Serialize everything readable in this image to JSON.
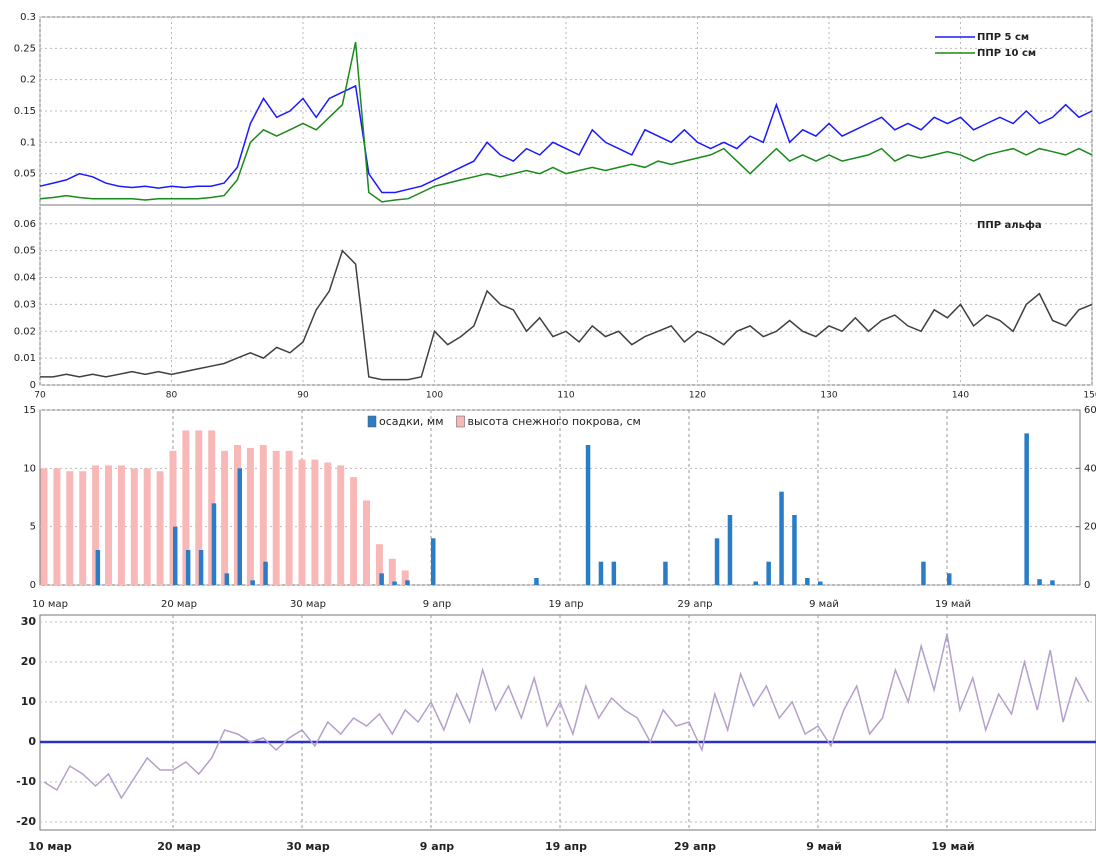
{
  "chart_data": [
    {
      "type": "line",
      "xlim": [
        70,
        150
      ],
      "xticks": [
        70,
        80,
        90,
        100,
        110,
        120,
        130,
        140,
        150
      ],
      "ylim": [
        0,
        0.3
      ],
      "yticks": [
        0.05,
        0.1,
        0.15,
        0.2,
        0.25,
        0.3
      ],
      "grid": true,
      "legend": "top-right",
      "x": [
        70,
        71,
        72,
        73,
        74,
        75,
        76,
        77,
        78,
        79,
        80,
        81,
        82,
        83,
        84,
        85,
        86,
        87,
        88,
        89,
        90,
        91,
        92,
        93,
        94,
        95,
        96,
        97,
        98,
        99,
        100,
        101,
        102,
        103,
        104,
        105,
        106,
        107,
        108,
        109,
        110,
        111,
        112,
        113,
        114,
        115,
        116,
        117,
        118,
        119,
        120,
        121,
        122,
        123,
        124,
        125,
        126,
        127,
        128,
        129,
        130,
        131,
        132,
        133,
        134,
        135,
        136,
        137,
        138,
        139,
        140,
        141,
        142,
        143,
        144,
        145,
        146,
        147,
        148,
        149,
        150
      ],
      "series": [
        {
          "name": "ППР 5 см",
          "color": "#1a1aff",
          "values": [
            0.03,
            0.035,
            0.04,
            0.05,
            0.045,
            0.035,
            0.03,
            0.028,
            0.03,
            0.027,
            0.03,
            0.028,
            0.03,
            0.03,
            0.035,
            0.06,
            0.13,
            0.17,
            0.14,
            0.15,
            0.17,
            0.14,
            0.17,
            0.18,
            0.19,
            0.05,
            0.02,
            0.02,
            0.025,
            0.03,
            0.04,
            0.05,
            0.06,
            0.07,
            0.1,
            0.08,
            0.07,
            0.09,
            0.08,
            0.1,
            0.09,
            0.08,
            0.12,
            0.1,
            0.09,
            0.08,
            0.12,
            0.11,
            0.1,
            0.12,
            0.1,
            0.09,
            0.1,
            0.09,
            0.11,
            0.1,
            0.16,
            0.1,
            0.12,
            0.11,
            0.13,
            0.11,
            0.12,
            0.13,
            0.14,
            0.12,
            0.13,
            0.12,
            0.14,
            0.13,
            0.14,
            0.12,
            0.13,
            0.14,
            0.13,
            0.15,
            0.13,
            0.14,
            0.16,
            0.14,
            0.15
          ]
        },
        {
          "name": "ППР 10 см",
          "color": "#1a8a1a",
          "values": [
            0.01,
            0.012,
            0.015,
            0.012,
            0.01,
            0.01,
            0.01,
            0.01,
            0.008,
            0.01,
            0.01,
            0.01,
            0.01,
            0.012,
            0.015,
            0.04,
            0.1,
            0.12,
            0.11,
            0.12,
            0.13,
            0.12,
            0.14,
            0.16,
            0.26,
            0.02,
            0.005,
            0.008,
            0.01,
            0.02,
            0.03,
            0.035,
            0.04,
            0.045,
            0.05,
            0.045,
            0.05,
            0.055,
            0.05,
            0.06,
            0.05,
            0.055,
            0.06,
            0.055,
            0.06,
            0.065,
            0.06,
            0.07,
            0.065,
            0.07,
            0.075,
            0.08,
            0.09,
            0.07,
            0.05,
            0.07,
            0.09,
            0.07,
            0.08,
            0.07,
            0.08,
            0.07,
            0.075,
            0.08,
            0.09,
            0.07,
            0.08,
            0.075,
            0.08,
            0.085,
            0.08,
            0.07,
            0.08,
            0.085,
            0.09,
            0.08,
            0.09,
            0.085,
            0.08,
            0.09,
            0.08
          ]
        }
      ]
    },
    {
      "type": "line",
      "xlim": [
        70,
        150
      ],
      "xticks": [
        70,
        80,
        90,
        100,
        110,
        120,
        130,
        140,
        150
      ],
      "ylim": [
        0,
        0.067
      ],
      "yticks": [
        0,
        0.01,
        0.02,
        0.03,
        0.04,
        0.05,
        0.06
      ],
      "grid": true,
      "legend": "top-right",
      "x": [
        70,
        71,
        72,
        73,
        74,
        75,
        76,
        77,
        78,
        79,
        80,
        81,
        82,
        83,
        84,
        85,
        86,
        87,
        88,
        89,
        90,
        91,
        92,
        93,
        94,
        95,
        96,
        97,
        98,
        99,
        100,
        101,
        102,
        103,
        104,
        105,
        106,
        107,
        108,
        109,
        110,
        111,
        112,
        113,
        114,
        115,
        116,
        117,
        118,
        119,
        120,
        121,
        122,
        123,
        124,
        125,
        126,
        127,
        128,
        129,
        130,
        131,
        132,
        133,
        134,
        135,
        136,
        137,
        138,
        139,
        140,
        141,
        142,
        143,
        144,
        145,
        146,
        147,
        148,
        149,
        150
      ],
      "series": [
        {
          "name": "ППР альфа",
          "color": "#404040",
          "values": [
            0.003,
            0.003,
            0.004,
            0.003,
            0.004,
            0.003,
            0.004,
            0.005,
            0.004,
            0.005,
            0.004,
            0.005,
            0.006,
            0.007,
            0.008,
            0.01,
            0.012,
            0.01,
            0.014,
            0.012,
            0.016,
            0.028,
            0.035,
            0.05,
            0.045,
            0.003,
            0.002,
            0.002,
            0.002,
            0.003,
            0.02,
            0.015,
            0.018,
            0.022,
            0.035,
            0.03,
            0.028,
            0.02,
            0.025,
            0.018,
            0.02,
            0.016,
            0.022,
            0.018,
            0.02,
            0.015,
            0.018,
            0.02,
            0.022,
            0.016,
            0.02,
            0.018,
            0.015,
            0.02,
            0.022,
            0.018,
            0.02,
            0.024,
            0.02,
            0.018,
            0.022,
            0.02,
            0.025,
            0.02,
            0.024,
            0.026,
            0.022,
            0.02,
            0.028,
            0.025,
            0.03,
            0.022,
            0.026,
            0.024,
            0.02,
            0.03,
            0.034,
            0.024,
            0.022,
            0.028,
            0.03
          ]
        }
      ]
    },
    {
      "type": "bar",
      "legend": "top-center",
      "grid": true,
      "categories": [
        "10 мар",
        null,
        null,
        null,
        null,
        null,
        null,
        null,
        null,
        null,
        "20 мар",
        null,
        null,
        null,
        null,
        null,
        null,
        null,
        null,
        null,
        "30 мар",
        null,
        null,
        null,
        null,
        null,
        null,
        null,
        null,
        null,
        "9 апр",
        null,
        null,
        null,
        null,
        null,
        null,
        null,
        null,
        null,
        "19 апр",
        null,
        null,
        null,
        null,
        null,
        null,
        null,
        null,
        null,
        "29 апр",
        null,
        null,
        null,
        null,
        null,
        null,
        null,
        null,
        null,
        "9 май",
        null,
        null,
        null,
        null,
        null,
        null,
        null,
        null,
        null,
        "19 май",
        null,
        null,
        null,
        null,
        null,
        null,
        null,
        null,
        null,
        null,
        null
      ],
      "ylim": [
        0,
        15
      ],
      "yticks": [
        0,
        5,
        10,
        15
      ],
      "y2lim": [
        0,
        60
      ],
      "y2ticks": [
        0,
        20,
        40,
        60
      ],
      "series": [
        {
          "name": "высота снежного покрова, см",
          "color": "#f9b8b8",
          "axis": "y2",
          "values": [
            40,
            40,
            39,
            39,
            41,
            41,
            41,
            40,
            40,
            39,
            46,
            53,
            53,
            53,
            46,
            48,
            47,
            48,
            46,
            46,
            43,
            43,
            42,
            41,
            37,
            29,
            14,
            9,
            5,
            0,
            0,
            0,
            0,
            0,
            0,
            0,
            0,
            0,
            0,
            0,
            0,
            0,
            0,
            0,
            0,
            0,
            0,
            0,
            0,
            0,
            0,
            0,
            0,
            0,
            0,
            0,
            0,
            0,
            0,
            0,
            0,
            0,
            0,
            0,
            0,
            0,
            0,
            0,
            0,
            0,
            0,
            0,
            0,
            0,
            0,
            0,
            0,
            0,
            0,
            0,
            0,
            0
          ]
        },
        {
          "name": "осадки, мм",
          "color": "#2a7cc7",
          "values": [
            0,
            0,
            0,
            0,
            3,
            0,
            0,
            0,
            0,
            0,
            5,
            3,
            3,
            7,
            1,
            10,
            0.4,
            2,
            0,
            0,
            0,
            0,
            0,
            0,
            0,
            0,
            1,
            0.3,
            0.4,
            0,
            4,
            0,
            0,
            0,
            0,
            0,
            0,
            0,
            0.6,
            0,
            0,
            0,
            12,
            2,
            2,
            0,
            0,
            0,
            2,
            0,
            0,
            0,
            4,
            6,
            0,
            0.3,
            2,
            8,
            6,
            0.6,
            0.3,
            0,
            0,
            0,
            0,
            0,
            0,
            0,
            2,
            0,
            1,
            0,
            0,
            0,
            0,
            0,
            13,
            0.5,
            0.4,
            0,
            0,
            0
          ]
        }
      ]
    },
    {
      "type": "line",
      "grid": true,
      "hline": 0,
      "hline_color": "#3030c0",
      "categories": [
        "10 мар",
        null,
        null,
        null,
        null,
        null,
        null,
        null,
        null,
        null,
        "20 мар",
        null,
        null,
        null,
        null,
        null,
        null,
        null,
        null,
        null,
        "30 мар",
        null,
        null,
        null,
        null,
        null,
        null,
        null,
        null,
        null,
        "9 апр",
        null,
        null,
        null,
        null,
        null,
        null,
        null,
        null,
        null,
        "19 апр",
        null,
        null,
        null,
        null,
        null,
        null,
        null,
        null,
        null,
        "29 апр",
        null,
        null,
        null,
        null,
        null,
        null,
        null,
        null,
        null,
        "9 май",
        null,
        null,
        null,
        null,
        null,
        null,
        null,
        null,
        null,
        "19 май",
        null,
        null,
        null,
        null,
        null,
        null,
        null,
        null,
        null,
        null,
        null
      ],
      "ylim": [
        -22,
        31.75
      ],
      "yticks": [
        -20,
        -10,
        0,
        10,
        20,
        30
      ],
      "series": [
        {
          "color": "#b4a0cc",
          "values": [
            -10,
            -12,
            -6,
            -8,
            -11,
            -8,
            -14,
            -9,
            -4,
            -7,
            -7,
            -5,
            -8,
            -4,
            3,
            2,
            0,
            1,
            -2,
            1,
            3,
            -1,
            5,
            2,
            6,
            4,
            7,
            2,
            8,
            5,
            10,
            3,
            12,
            5,
            18,
            8,
            14,
            6,
            16,
            4,
            10,
            2,
            14,
            6,
            11,
            8,
            6,
            0,
            8,
            4,
            5,
            -2,
            12,
            3,
            17,
            9,
            14,
            6,
            10,
            2,
            4,
            -1,
            8,
            14,
            2,
            6,
            18,
            10,
            24,
            13,
            27,
            8,
            16,
            3,
            12,
            7,
            20,
            8,
            23,
            5,
            16,
            10
          ]
        }
      ]
    }
  ]
}
